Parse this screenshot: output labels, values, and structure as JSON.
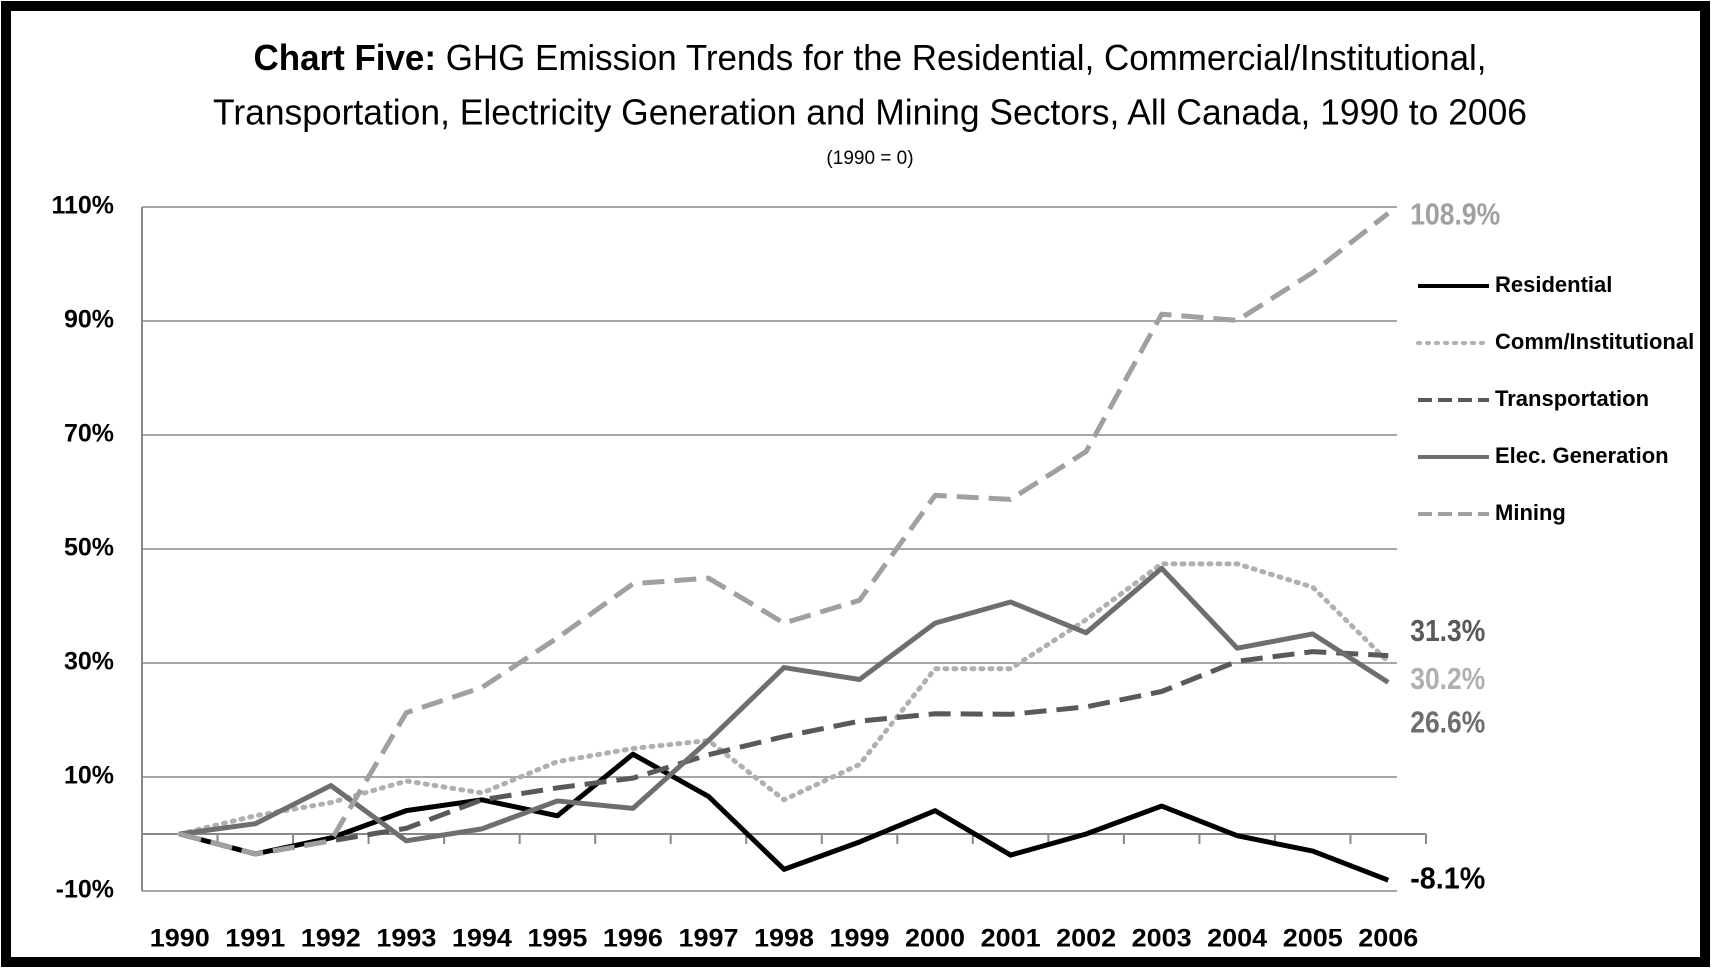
{
  "chart_data": {
    "type": "line",
    "title_lead": "Chart Five:",
    "title_lines": [
      "GHG Emission Trends for the Residential, Commercial/Institutional,",
      "Transportation, Electricity Generation and Mining  Sectors,  All Canada, 1990 to 2006"
    ],
    "subtitle": "(1990 = 0)",
    "categories": [
      "1990",
      "1991",
      "1992",
      "1993",
      "1994",
      "1995",
      "1996",
      "1997",
      "1998",
      "1999",
      "2000",
      "2001",
      "2002",
      "2003",
      "2004",
      "2005",
      "2006"
    ],
    "ylim": [
      -10,
      110
    ],
    "yticks": [
      {
        "value": -10,
        "label": "-10%"
      },
      {
        "value": 10,
        "label": "10%"
      },
      {
        "value": 30,
        "label": "30%"
      },
      {
        "value": 50,
        "label": "50%"
      },
      {
        "value": 70,
        "label": "70%"
      },
      {
        "value": 90,
        "label": "90%"
      },
      {
        "value": 110,
        "label": "110%"
      }
    ],
    "grid": true,
    "legend": "right",
    "series": [
      {
        "name": "Residential",
        "color": "#000000",
        "style": "solid",
        "values": [
          0,
          -3.5,
          -0.7,
          4.1,
          6,
          3.2,
          14,
          6.6,
          -6.2,
          -1.4,
          4.1,
          -3.7,
          0,
          4.9,
          -0.3,
          -3,
          -8.1
        ],
        "value_labels": [
          null,
          null,
          null,
          null,
          null,
          null,
          null,
          null,
          null,
          null,
          null,
          null,
          null,
          null,
          null,
          null,
          "-8.1%"
        ]
      },
      {
        "name": "Comm/Institutional",
        "color": "#b0b0b0",
        "style": "dotted",
        "values": [
          0,
          3.2,
          5.5,
          9.3,
          7.2,
          12.7,
          15,
          16.4,
          6,
          12.2,
          29,
          29,
          37.6,
          47.4,
          47.4,
          43.3,
          30.2
        ],
        "value_labels": [
          null,
          null,
          null,
          null,
          null,
          null,
          null,
          null,
          null,
          null,
          null,
          null,
          null,
          null,
          null,
          null,
          "30.2%"
        ]
      },
      {
        "name": "Transportation",
        "color": "#595959",
        "style": "dashed",
        "values": [
          0,
          -3.5,
          -1.2,
          1,
          6,
          8.1,
          9.8,
          13.9,
          17.1,
          19.8,
          21.1,
          21,
          22.3,
          25,
          30.3,
          32,
          31.3
        ],
        "value_labels": [
          null,
          null,
          null,
          null,
          null,
          null,
          null,
          null,
          null,
          null,
          null,
          null,
          null,
          null,
          null,
          null,
          "31.3%"
        ]
      },
      {
        "name": "Elec. Generation",
        "color": "#6e6e6e",
        "style": "solid",
        "values": [
          0,
          1.8,
          8.5,
          -1.2,
          0.9,
          5.8,
          4.5,
          16.4,
          29.2,
          27.1,
          37,
          40.7,
          35.3,
          46.6,
          32.6,
          35.1,
          26.6
        ],
        "value_labels": [
          null,
          null,
          null,
          null,
          null,
          null,
          null,
          null,
          null,
          null,
          null,
          null,
          null,
          null,
          null,
          null,
          "26.6%"
        ]
      },
      {
        "name": "Mining",
        "color": "#a0a0a0",
        "style": "dashed",
        "values": [
          0,
          -3.5,
          -1.2,
          21.3,
          25.7,
          34.4,
          43.9,
          44.9,
          37,
          41,
          59.4,
          58.7,
          67.1,
          91.2,
          90.1,
          98.5,
          108.9
        ],
        "value_labels": [
          null,
          null,
          null,
          null,
          null,
          null,
          null,
          null,
          null,
          null,
          null,
          null,
          null,
          null,
          null,
          null,
          "108.9%"
        ]
      }
    ]
  }
}
